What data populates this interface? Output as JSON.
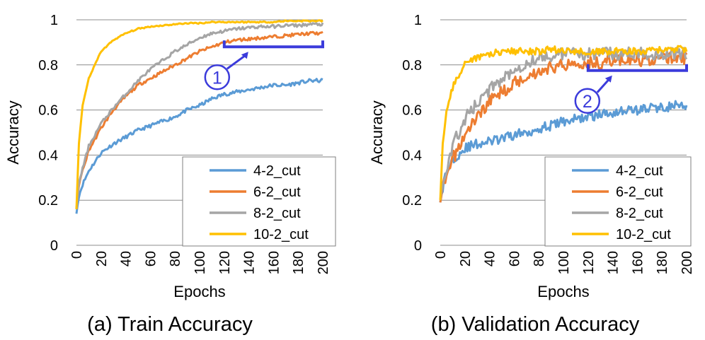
{
  "figure": {
    "captions": [
      "(a) Train Accuracy",
      "(b) Validation Accuracy"
    ]
  },
  "chart_data": [
    {
      "type": "line",
      "title": "(a) Train Accuracy",
      "xlabel": "Epochs",
      "ylabel": "Accuracy",
      "xlim": [
        0,
        200
      ],
      "ylim": [
        0,
        1
      ],
      "xticks": [
        0,
        20,
        40,
        60,
        80,
        100,
        120,
        140,
        160,
        180,
        200
      ],
      "yticks": [
        0,
        0.2,
        0.4,
        0.6,
        0.8,
        1
      ],
      "ytick_labels": [
        "0",
        "0.2",
        "0.4",
        "0.6",
        "0.8",
        "1"
      ],
      "grid": "horizontal",
      "legend_position": "bottom-right",
      "series": [
        {
          "name": "4-2_cut",
          "color": "#5b9bd5",
          "noise": 0.008,
          "x": [
            0,
            2,
            5,
            10,
            20,
            30,
            40,
            50,
            60,
            70,
            80,
            90,
            100,
            110,
            120,
            130,
            140,
            150,
            160,
            170,
            180,
            190,
            200
          ],
          "y": [
            0.14,
            0.22,
            0.27,
            0.33,
            0.41,
            0.45,
            0.48,
            0.51,
            0.53,
            0.55,
            0.57,
            0.6,
            0.62,
            0.65,
            0.67,
            0.68,
            0.69,
            0.7,
            0.71,
            0.71,
            0.72,
            0.73,
            0.73
          ]
        },
        {
          "name": "6-2_cut",
          "color": "#ed7d31",
          "noise": 0.007,
          "x": [
            0,
            2,
            5,
            10,
            20,
            30,
            40,
            50,
            60,
            70,
            80,
            90,
            100,
            110,
            120,
            130,
            140,
            150,
            160,
            170,
            180,
            190,
            200
          ],
          "y": [
            0.16,
            0.27,
            0.33,
            0.42,
            0.52,
            0.6,
            0.66,
            0.71,
            0.74,
            0.77,
            0.8,
            0.83,
            0.86,
            0.88,
            0.9,
            0.91,
            0.915,
            0.92,
            0.925,
            0.93,
            0.935,
            0.94,
            0.94
          ]
        },
        {
          "name": "8-2_cut",
          "color": "#a5a5a5",
          "noise": 0.007,
          "x": [
            0,
            2,
            5,
            10,
            20,
            30,
            40,
            50,
            60,
            70,
            80,
            90,
            100,
            110,
            120,
            130,
            140,
            150,
            160,
            170,
            180,
            190,
            200
          ],
          "y": [
            0.16,
            0.28,
            0.34,
            0.44,
            0.54,
            0.61,
            0.67,
            0.73,
            0.78,
            0.82,
            0.86,
            0.89,
            0.92,
            0.94,
            0.95,
            0.96,
            0.965,
            0.97,
            0.97,
            0.975,
            0.975,
            0.98,
            0.98
          ]
        },
        {
          "name": "10-2_cut",
          "color": "#ffc000",
          "noise": 0.003,
          "x": [
            0,
            2,
            5,
            10,
            20,
            30,
            40,
            50,
            60,
            70,
            80,
            90,
            100,
            110,
            120,
            130,
            140,
            150,
            160,
            170,
            180,
            190,
            200
          ],
          "y": [
            0.16,
            0.45,
            0.62,
            0.74,
            0.86,
            0.91,
            0.94,
            0.96,
            0.97,
            0.975,
            0.98,
            0.985,
            0.985,
            0.99,
            0.99,
            0.99,
            0.99,
            0.99,
            0.99,
            0.995,
            0.995,
            0.995,
            0.995
          ]
        }
      ],
      "annotation": {
        "label": "1",
        "bracket_x": [
          120,
          200
        ],
        "bracket_y": 0.88,
        "color": "#3b3bdb"
      }
    },
    {
      "type": "line",
      "title": "(b) Validation Accuracy",
      "xlabel": "Epochs",
      "ylabel": "Accuracy",
      "xlim": [
        0,
        200
      ],
      "ylim": [
        0,
        1
      ],
      "xticks": [
        0,
        20,
        40,
        60,
        80,
        100,
        120,
        140,
        160,
        180,
        200
      ],
      "yticks": [
        0,
        0.2,
        0.4,
        0.6,
        0.8,
        1
      ],
      "ytick_labels": [
        "0",
        "0.2",
        "0.4",
        "0.6",
        "0.8",
        "1"
      ],
      "grid": "horizontal",
      "legend_position": "bottom-right",
      "series": [
        {
          "name": "4-2_cut",
          "color": "#5b9bd5",
          "noise": 0.022,
          "x": [
            0,
            2,
            5,
            10,
            20,
            30,
            40,
            50,
            60,
            70,
            80,
            90,
            100,
            110,
            120,
            130,
            140,
            150,
            160,
            170,
            180,
            190,
            200
          ],
          "y": [
            0.19,
            0.26,
            0.32,
            0.38,
            0.43,
            0.45,
            0.46,
            0.47,
            0.49,
            0.5,
            0.52,
            0.53,
            0.55,
            0.56,
            0.57,
            0.58,
            0.59,
            0.6,
            0.6,
            0.61,
            0.61,
            0.62,
            0.61
          ]
        },
        {
          "name": "6-2_cut",
          "color": "#ed7d31",
          "noise": 0.028,
          "x": [
            0,
            2,
            5,
            10,
            20,
            30,
            40,
            50,
            60,
            70,
            80,
            90,
            100,
            110,
            120,
            130,
            140,
            150,
            160,
            170,
            180,
            190,
            200
          ],
          "y": [
            0.19,
            0.25,
            0.3,
            0.38,
            0.49,
            0.57,
            0.64,
            0.68,
            0.72,
            0.75,
            0.77,
            0.79,
            0.8,
            0.81,
            0.81,
            0.81,
            0.82,
            0.82,
            0.82,
            0.82,
            0.83,
            0.83,
            0.83
          ]
        },
        {
          "name": "8-2_cut",
          "color": "#a5a5a5",
          "noise": 0.028,
          "x": [
            0,
            2,
            5,
            10,
            20,
            30,
            40,
            50,
            60,
            70,
            80,
            90,
            100,
            110,
            120,
            130,
            140,
            150,
            160,
            170,
            180,
            190,
            200
          ],
          "y": [
            0.2,
            0.28,
            0.34,
            0.44,
            0.56,
            0.63,
            0.69,
            0.74,
            0.78,
            0.81,
            0.83,
            0.84,
            0.85,
            0.85,
            0.85,
            0.85,
            0.85,
            0.85,
            0.85,
            0.85,
            0.85,
            0.85,
            0.85
          ]
        },
        {
          "name": "10-2_cut",
          "color": "#ffc000",
          "noise": 0.015,
          "x": [
            0,
            2,
            5,
            10,
            20,
            30,
            40,
            50,
            60,
            70,
            80,
            90,
            100,
            110,
            120,
            130,
            140,
            150,
            160,
            170,
            180,
            190,
            200
          ],
          "y": [
            0.2,
            0.45,
            0.6,
            0.7,
            0.8,
            0.83,
            0.85,
            0.86,
            0.86,
            0.86,
            0.86,
            0.87,
            0.86,
            0.86,
            0.86,
            0.86,
            0.86,
            0.86,
            0.86,
            0.86,
            0.87,
            0.87,
            0.87
          ]
        }
      ],
      "annotation": {
        "label": "2",
        "bracket_x": [
          120,
          200
        ],
        "bracket_y": 0.775,
        "color": "#3b3bdb"
      }
    }
  ]
}
